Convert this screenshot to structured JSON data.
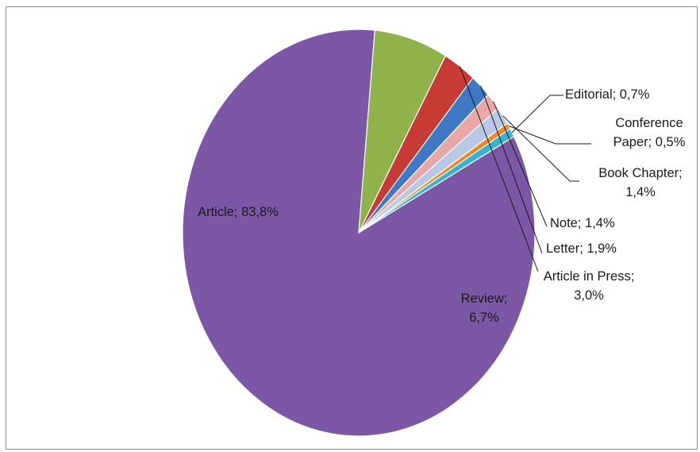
{
  "chart_data": {
    "type": "pie",
    "title": "",
    "slices": [
      {
        "name": "Article",
        "value": 83.8,
        "label_lines": [
          "Article; 83,8%"
        ],
        "color": "#7b57a6"
      },
      {
        "name": "Review",
        "value": 6.7,
        "label_lines": [
          "Review;",
          "6,7%"
        ],
        "color": "#8fb34a"
      },
      {
        "name": "Article in Press",
        "value": 3.0,
        "label_lines": [
          "Article in Press;",
          "3,0%"
        ],
        "color": "#c83b35"
      },
      {
        "name": "Letter",
        "value": 1.9,
        "label_lines": [
          "Letter; 1,9%"
        ],
        "color": "#3f78c4"
      },
      {
        "name": "Note",
        "value": 1.4,
        "label_lines": [
          "Note; 1,4%"
        ],
        "color": "#e9a8a8"
      },
      {
        "name": "Book Chapter",
        "value": 1.4,
        "label_lines": [
          "Book Chapter;",
          "1,4%"
        ],
        "color": "#b9c8e6"
      },
      {
        "name": "Conference Paper",
        "value": 0.5,
        "label_lines": [
          "Conference",
          "Paper; 0,5%"
        ],
        "color": "#f08a28"
      },
      {
        "name": "Editorial",
        "value": 0.7,
        "label_lines": [
          "Editorial; 0,7%"
        ],
        "color": "#38b3cf"
      }
    ],
    "legend": "none",
    "data_labels": "category; percentage"
  }
}
